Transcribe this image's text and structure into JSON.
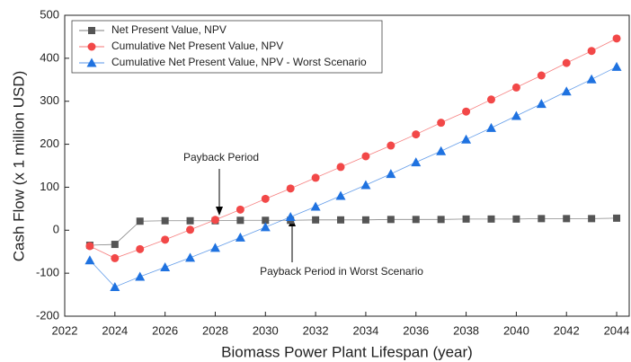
{
  "chart_data": {
    "type": "line",
    "x_label": "Biomass Power Plant Lifespan (year)",
    "y_label": "Cash Flow (x 1 million USD)",
    "x": [
      2023,
      2024,
      2025,
      2026,
      2027,
      2028,
      2029,
      2030,
      2031,
      2032,
      2033,
      2034,
      2035,
      2036,
      2037,
      2038,
      2039,
      2040,
      2041,
      2042,
      2043,
      2044
    ],
    "series": [
      {
        "name": "Net Present Value, NPV",
        "color": "#555555",
        "marker": "square",
        "values": [
          -35,
          -33,
          21,
          22,
          22,
          22,
          23,
          23,
          23,
          24,
          24,
          24,
          25,
          25,
          25,
          26,
          26,
          26,
          27,
          27,
          27,
          28
        ]
      },
      {
        "name": "Cumulative Net Present Value, NPV",
        "color": "#f24848",
        "marker": "circle",
        "values": [
          -37,
          -65,
          -44,
          -22,
          1,
          24,
          48,
          73,
          97,
          122,
          147,
          172,
          197,
          223,
          250,
          276,
          304,
          332,
          360,
          389,
          417,
          446
        ]
      },
      {
        "name": "Cumulative Net Present Value, NPV - Worst Scenario",
        "color": "#1f72e0",
        "marker": "triangle",
        "values": [
          -70,
          -132,
          -108,
          -86,
          -64,
          -41,
          -17,
          7,
          31,
          55,
          80,
          105,
          131,
          158,
          184,
          211,
          238,
          266,
          294,
          323,
          351,
          380
        ]
      }
    ],
    "annotations": [
      "Payback Period",
      "Payback Period in Worst Scenario"
    ],
    "xlim": [
      2022,
      2044.5
    ],
    "xticks": [
      2022,
      2024,
      2026,
      2028,
      2030,
      2032,
      2034,
      2036,
      2038,
      2040,
      2042,
      2044
    ],
    "ylim": [
      -200,
      500
    ],
    "yticks": [
      -200,
      -100,
      0,
      100,
      200,
      300,
      400,
      500
    ],
    "legend": "upper left"
  }
}
